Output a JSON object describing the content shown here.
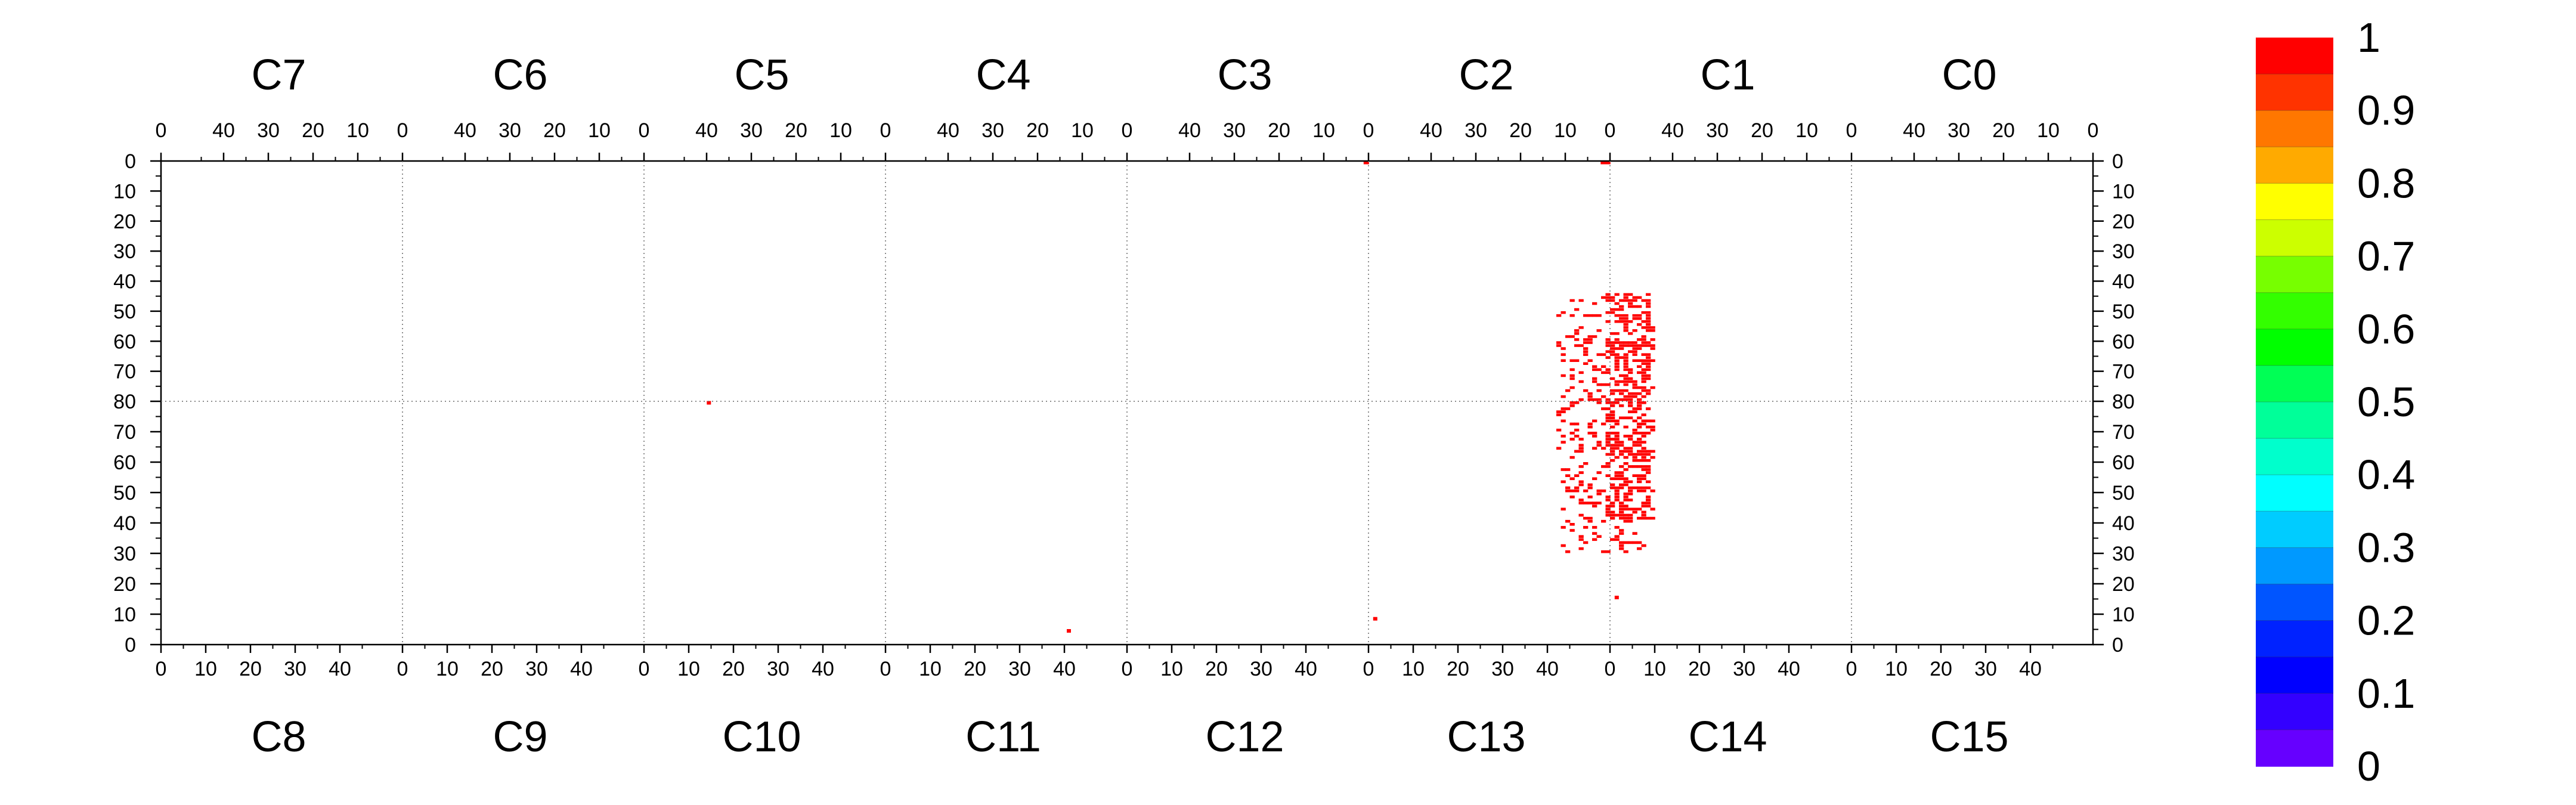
{
  "chart_data": {
    "type": "heatmap",
    "title": "",
    "xlabel": "",
    "ylabel": "",
    "top_chips": [
      "C7",
      "C6",
      "C5",
      "C4",
      "C3",
      "C2",
      "C1",
      "C0"
    ],
    "bottom_chips": [
      "C8",
      "C9",
      "C10",
      "C11",
      "C12",
      "C13",
      "C14",
      "C15"
    ],
    "top_axis_ticks": [
      "40",
      "30",
      "20",
      "10",
      "0"
    ],
    "bottom_axis_ticks": [
      "0",
      "10",
      "20",
      "30",
      "40"
    ],
    "y_ticks_top_half": [
      "0",
      "10",
      "20",
      "30",
      "40",
      "50",
      "60",
      "70",
      "80"
    ],
    "y_ticks_bottom_half": [
      "70",
      "60",
      "50",
      "40",
      "30",
      "20",
      "10",
      "0"
    ],
    "colorbar": {
      "range": [
        0,
        1
      ],
      "labels": [
        "1",
        "0.9",
        "0.8",
        "0.7",
        "0.6",
        "0.5",
        "0.4",
        "0.3",
        "0.2",
        "0.1",
        "0"
      ],
      "colors": [
        "#ff0000",
        "#ff3300",
        "#ff7700",
        "#ffaa00",
        "#ffff00",
        "#ccff00",
        "#77ff00",
        "#33ff00",
        "#00ff00",
        "#00ff55",
        "#00ff99",
        "#00ffcc",
        "#00ffff",
        "#00ccff",
        "#0099ff",
        "#0055ff",
        "#0022ff",
        "#0000ff",
        "#3300ff",
        "#6600ff"
      ]
    },
    "hit_color": "#ff0000",
    "hit_value": 1,
    "isolated_hits": [
      {
        "chip": "C3",
        "col": 0.5,
        "row": 0.5
      },
      {
        "chip": "C2",
        "col": 1.5,
        "row": 0.5
      },
      {
        "chip": "C2",
        "col": 0.5,
        "row": 0.5
      },
      {
        "chip": "C10",
        "col": 14.5,
        "row": 79.5
      },
      {
        "chip": "C11",
        "col": 41,
        "row": 4.5
      },
      {
        "chip": "C13",
        "col": 1.5,
        "row": 8.5
      },
      {
        "chip": "C14",
        "col": 1.5,
        "row": 15.5
      }
    ],
    "cluster": {
      "chip_top": "C1",
      "chip_bottom": "C14",
      "x_range": [
        -12,
        10
      ],
      "top_half_rows": [
        44,
        80
      ],
      "bottom_half_rows": [
        30,
        80
      ],
      "occupancy": 0.38
    }
  }
}
